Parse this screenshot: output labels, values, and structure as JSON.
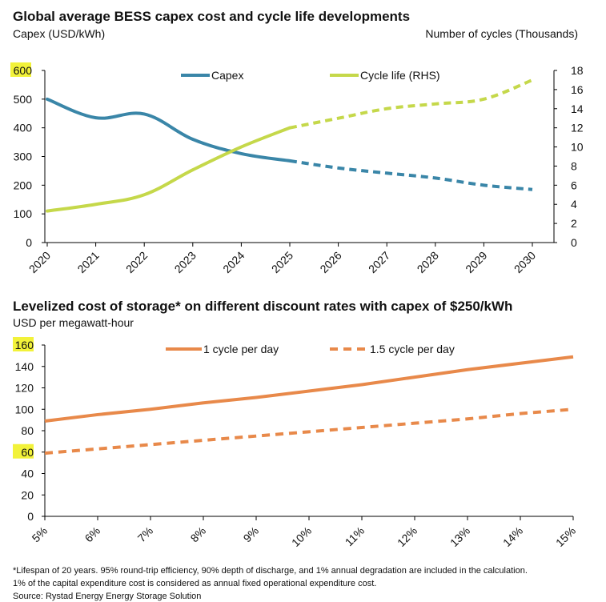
{
  "colors": {
    "capex": "#3a86a8",
    "cycle_life": "#c5d84a",
    "lcos": "#e8894a",
    "highlight": "#f2f23a",
    "axis": "#000000"
  },
  "chart_data": [
    {
      "type": "line",
      "title": "Global average BESS capex cost and cycle life developments",
      "ylabel": "Capex (USD/kWh)",
      "y2label": "Number of cycles (Thousands)",
      "x": [
        "2020",
        "2021",
        "2022",
        "2023",
        "2024",
        "2025",
        "2026",
        "2027",
        "2028",
        "2029",
        "2030"
      ],
      "ylim": [
        0,
        600
      ],
      "y_ticks": [
        "0",
        "100",
        "200",
        "300",
        "400",
        "500",
        "600"
      ],
      "y2lim": [
        0,
        18
      ],
      "y2_ticks": [
        "0",
        "2",
        "4",
        "6",
        "8",
        "10",
        "12",
        "14",
        "16",
        "18"
      ],
      "series": [
        {
          "name": "Capex",
          "axis": "left",
          "values": [
            500,
            435,
            448,
            360,
            310,
            285,
            260,
            242,
            225,
            200,
            185
          ],
          "dashed_from": "2025"
        },
        {
          "name": "Cycle life (RHS)",
          "axis": "right",
          "values": [
            3.3,
            4.0,
            5.0,
            7.6,
            10.0,
            12.0,
            13.0,
            14.0,
            14.5,
            15.0,
            17.0
          ],
          "dashed_from": "2025"
        }
      ],
      "legend": "top-center",
      "grid": false
    },
    {
      "type": "line",
      "title": "Levelized cost of storage* on different discount rates with capex of $250/kWh",
      "ylabel": "USD per megawatt-hour",
      "x": [
        "5%",
        "6%",
        "7%",
        "8%",
        "9%",
        "10%",
        "11%",
        "12%",
        "13%",
        "14%",
        "15%"
      ],
      "ylim": [
        0,
        160
      ],
      "y_ticks": [
        "0",
        "20",
        "40",
        "60",
        "80",
        "100",
        "120",
        "140",
        "160"
      ],
      "series": [
        {
          "name": "1 cycle per day",
          "style": "solid",
          "values": [
            89,
            95,
            100,
            106,
            111,
            117,
            123,
            130,
            137,
            143,
            149
          ]
        },
        {
          "name": "1.5 cycle per day",
          "style": "dashed",
          "values": [
            59,
            63,
            67,
            71,
            75,
            79,
            83,
            87,
            91,
            96,
            100
          ]
        }
      ],
      "legend": "top-center",
      "grid": false
    }
  ],
  "footnotes": {
    "line1": "*Lifespan of 20 years. 95% round-trip efficiency, 90% depth of discharge, and 1% annual degradation are included in the calculation.",
    "line2": "1% of the capital expenditure cost is considered as annual fixed operational expenditure cost.",
    "source": "Source: Rystad Energy Energy Storage Solution"
  }
}
